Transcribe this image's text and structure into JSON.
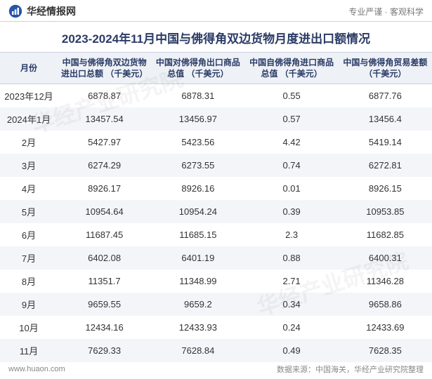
{
  "header": {
    "brand": "华经情报网",
    "slogan": "专业严谨 · 客观科学",
    "logo_color": "#2556a8"
  },
  "title": "2023-2024年11月中国与佛得角双边货物月度进出口额情况",
  "table": {
    "columns": [
      "月份",
      "中国与佛得角双边货物进出口总额\n（千美元）",
      "中国对佛得角出口商品总值\n（千美元）",
      "中国自佛得角进口商品总值\n（千美元）",
      "中国与佛得角贸易差额\n（千美元）"
    ],
    "rows": [
      [
        "2023年12月",
        "6878.87",
        "6878.31",
        "0.55",
        "6877.76"
      ],
      [
        "2024年1月",
        "13457.54",
        "13456.97",
        "0.57",
        "13456.4"
      ],
      [
        "2月",
        "5427.97",
        "5423.56",
        "4.42",
        "5419.14"
      ],
      [
        "3月",
        "6274.29",
        "6273.55",
        "0.74",
        "6272.81"
      ],
      [
        "4月",
        "8926.17",
        "8926.16",
        "0.01",
        "8926.15"
      ],
      [
        "5月",
        "10954.64",
        "10954.24",
        "0.39",
        "10953.85"
      ],
      [
        "6月",
        "11687.45",
        "11685.15",
        "2.3",
        "11682.85"
      ],
      [
        "7月",
        "6402.08",
        "6401.19",
        "0.88",
        "6400.31"
      ],
      [
        "8月",
        "11351.7",
        "11348.99",
        "2.71",
        "11346.28"
      ],
      [
        "9月",
        "9659.55",
        "9659.2",
        "0.34",
        "9658.86"
      ],
      [
        "10月",
        "12434.16",
        "12433.93",
        "0.24",
        "12433.69"
      ],
      [
        "11月",
        "7629.33",
        "7628.84",
        "0.49",
        "7628.35"
      ]
    ],
    "header_bg": "#eef1f6",
    "header_text_color": "#2a3b66",
    "row_even_bg": "#f3f5f9",
    "font_size_header": 12,
    "font_size_cell": 13
  },
  "footer": {
    "site": "www.huaon.com",
    "source": "数据来源：中国海关，华经产业研究院整理"
  },
  "watermark": "华经产业研究院",
  "colors": {
    "background": "#ffffff",
    "title_color": "#2a3b66",
    "footer_text": "#888888"
  }
}
